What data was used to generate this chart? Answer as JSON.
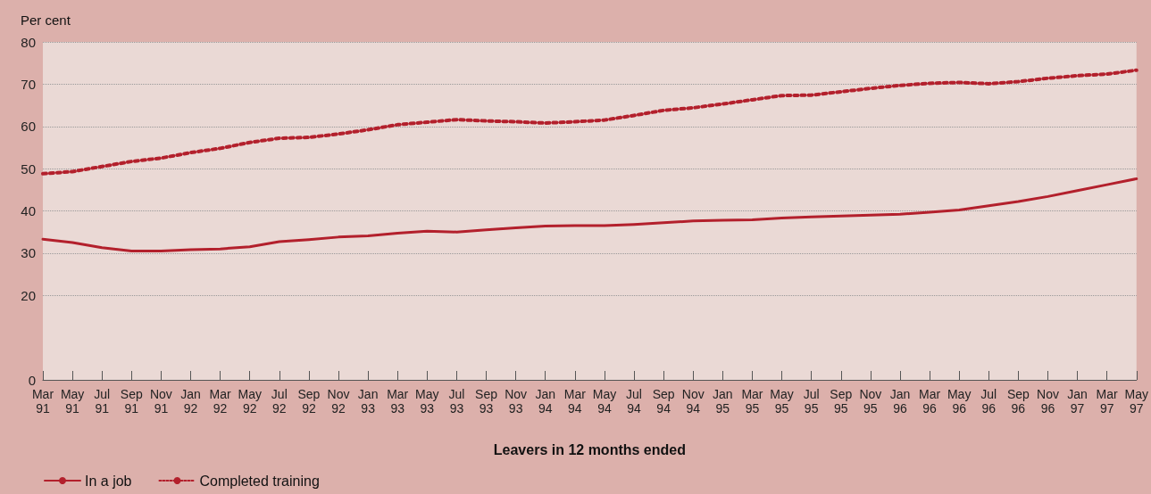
{
  "chart_data": {
    "type": "line",
    "ylabel": "Per cent",
    "xlabel": "Leavers in 12 months ended",
    "categories": [
      "Mar 91",
      "May 91",
      "Jul 91",
      "Sep 91",
      "Nov 91",
      "Jan 92",
      "Mar 92",
      "May 92",
      "Jul 92",
      "Sep 92",
      "Nov 92",
      "Jan 93",
      "Mar 93",
      "May 93",
      "Jul 93",
      "Sep 93",
      "Nov 93",
      "Jan 94",
      "Mar 94",
      "May 94",
      "Jul 94",
      "Sep 94",
      "Nov 94",
      "Jan 95",
      "Mar 95",
      "May 95",
      "Jul 95",
      "Sep 95",
      "Nov 95",
      "Jan 96",
      "Mar 96",
      "May 96",
      "Jul 96",
      "Sep 96",
      "Nov 96",
      "Jan 97",
      "Mar 97",
      "May 97"
    ],
    "series": [
      {
        "name": "In a job",
        "color": "#b3202c",
        "line_style": "solid",
        "values": [
          33.3,
          32.5,
          31.3,
          30.5,
          30.5,
          30.8,
          31,
          31.5,
          32.7,
          33.2,
          33.8,
          34.1,
          34.7,
          35.2,
          35,
          35.5,
          36,
          36.4,
          36.5,
          36.5,
          36.8,
          37.2,
          37.6,
          37.8,
          37.9,
          38.3,
          38.6,
          38.8,
          39,
          39.2,
          39.7,
          40.2,
          41.2,
          42.2,
          43.4,
          44.8,
          46.2,
          47.6
        ]
      },
      {
        "name": "Completed training",
        "color": "#b3202c",
        "line_style": "dotted",
        "values": [
          48.8,
          49.3,
          50.5,
          51.7,
          52.5,
          53.8,
          54.8,
          56.2,
          57.2,
          57.4,
          58.2,
          59.2,
          60.4,
          61,
          61.6,
          61.3,
          61.1,
          60.8,
          61.1,
          61.5,
          62.6,
          63.8,
          64.4,
          65.3,
          66.3,
          67.3,
          67.4,
          68.2,
          69,
          69.7,
          70.2,
          70.4,
          70.1,
          70.6,
          71.4,
          72,
          72.4,
          73.3
        ]
      }
    ],
    "ylim": [
      0,
      80
    ],
    "yticks": [
      0,
      20,
      30,
      40,
      50,
      60,
      70,
      80
    ],
    "grid": "y",
    "legend": "bottom left"
  }
}
